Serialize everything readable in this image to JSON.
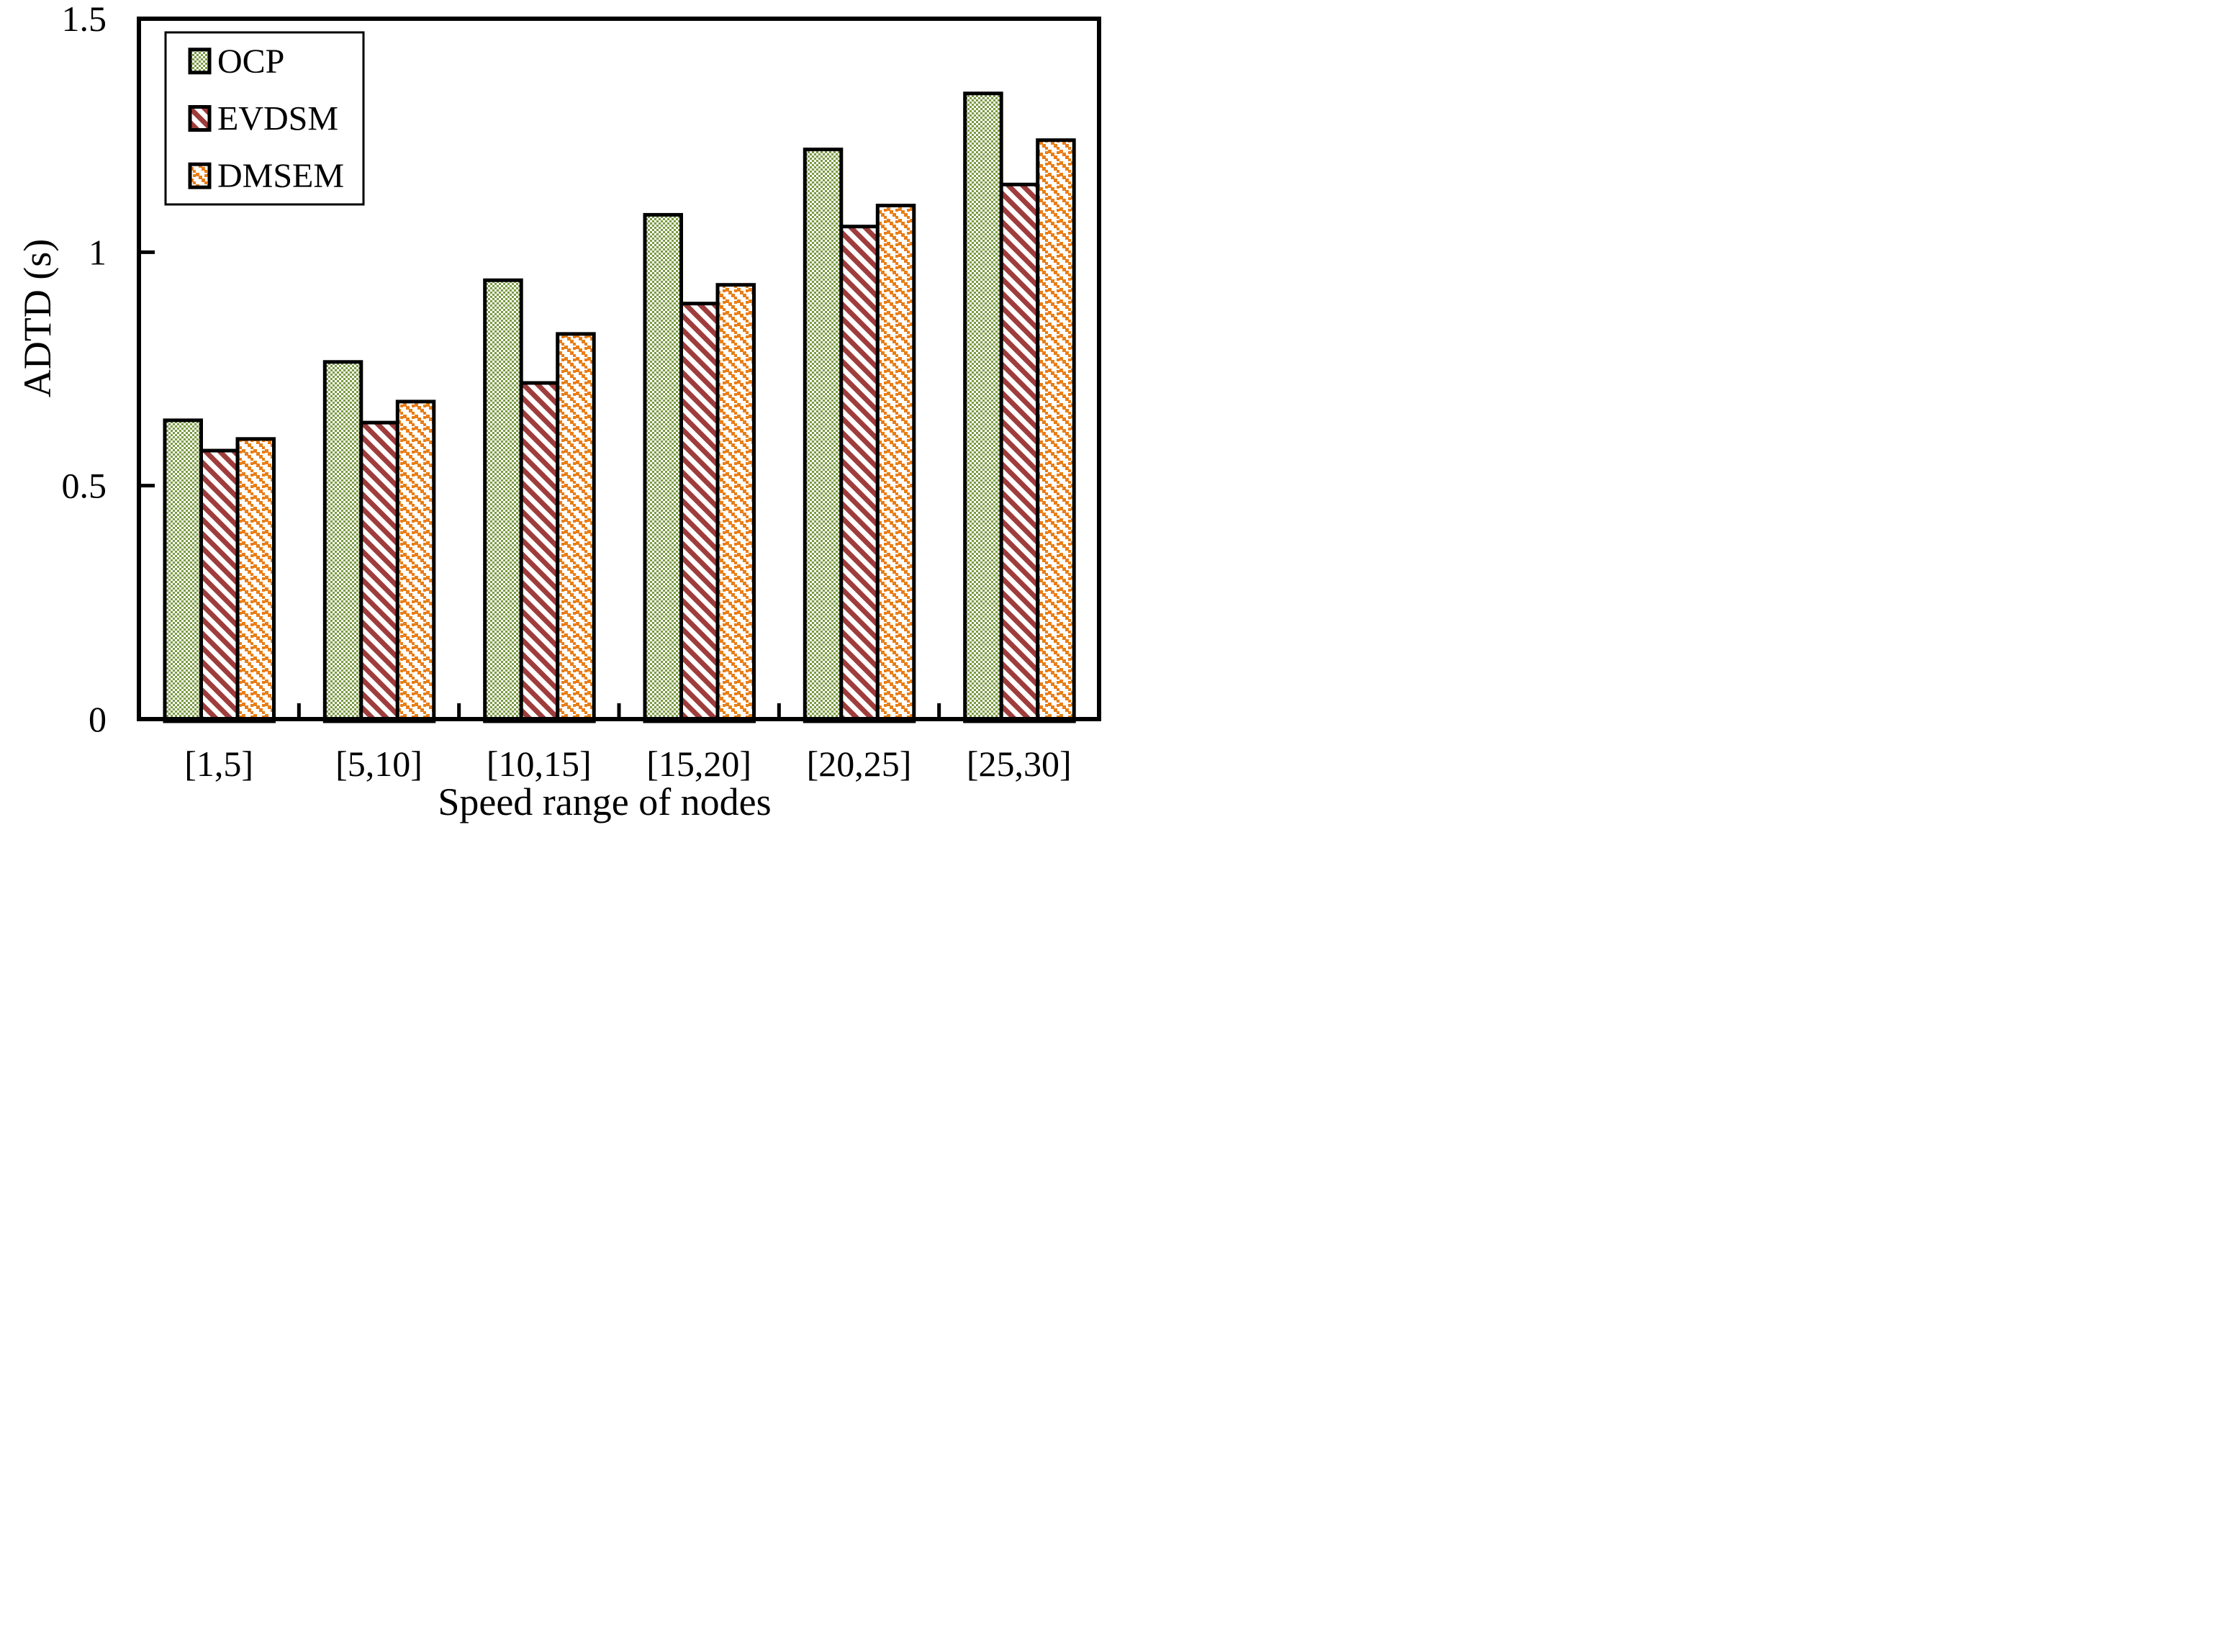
{
  "chart_data": {
    "type": "bar",
    "title": "",
    "xlabel": "Speed range of nodes",
    "ylabel": "ADTD (s)",
    "categories": [
      "[1,5]",
      "[5,10]",
      "[10,15]",
      "[15,20]",
      "[20,25]",
      "[25,30]"
    ],
    "series": [
      {
        "name": "OCP",
        "color": "#7B9B44",
        "pattern": "green-zigzag-squares",
        "values": [
          0.64,
          0.765,
          0.94,
          1.08,
          1.22,
          1.34
        ]
      },
      {
        "name": "EVDSM",
        "color": "#9E3D3C",
        "pattern": "dark-red-diagonal-stripes",
        "values": [
          0.575,
          0.635,
          0.72,
          0.89,
          1.055,
          1.145
        ]
      },
      {
        "name": "DMSEM",
        "color": "#E87E17",
        "pattern": "orange-dotted-squares",
        "values": [
          0.6,
          0.68,
          0.825,
          0.93,
          1.1,
          1.24
        ]
      }
    ],
    "ylim": [
      0,
      1.5
    ],
    "yticks": [
      "0",
      "0.5",
      "1",
      "1.5"
    ],
    "ytick_values": [
      0,
      0.5,
      1,
      1.5
    ],
    "bar_outline_color": "#000000",
    "legend_position": "top-left",
    "grid": false
  }
}
